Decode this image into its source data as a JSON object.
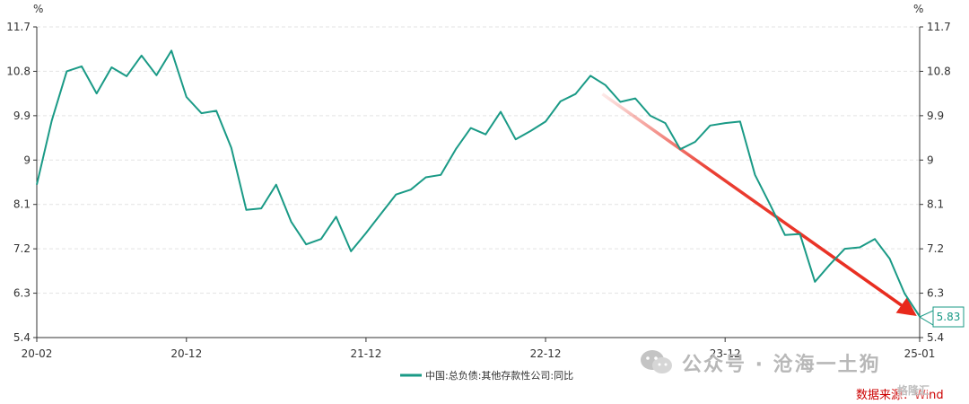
{
  "chart_data": {
    "type": "line",
    "y_unit_left": "%",
    "y_unit_right": "%",
    "ylim": [
      5.4,
      11.7
    ],
    "y_ticks": [
      "5.4",
      "6.3",
      "7.2",
      "8.1",
      "9",
      "9.9",
      "10.8",
      "11.7"
    ],
    "x_tick_labels": [
      {
        "label": "20-02",
        "index": 0
      },
      {
        "label": "20-12",
        "index": 10
      },
      {
        "label": "21-12",
        "index": 22
      },
      {
        "label": "22-12",
        "index": 34
      },
      {
        "label": "23-12",
        "index": 46
      },
      {
        "label": "25-01",
        "index": 59
      }
    ],
    "grid": "horizontal dashed",
    "legend_position": "bottom-center",
    "series": [
      {
        "name": "中国:总负债:其他存款性公司:同比",
        "color": "#1a9a86",
        "values": [
          8.5,
          9.8,
          10.8,
          10.9,
          10.35,
          10.88,
          10.7,
          11.12,
          10.72,
          11.22,
          10.28,
          9.95,
          10.0,
          9.25,
          7.99,
          8.02,
          8.5,
          7.75,
          7.29,
          7.4,
          7.85,
          7.15,
          7.52,
          7.91,
          8.3,
          8.4,
          8.65,
          8.7,
          9.22,
          9.65,
          9.52,
          9.98,
          9.42,
          9.59,
          9.78,
          10.19,
          10.34,
          10.71,
          10.52,
          10.18,
          10.25,
          9.9,
          9.75,
          9.22,
          9.37,
          9.7,
          9.75,
          9.78,
          8.7,
          8.1,
          7.48,
          7.5,
          6.53,
          6.88,
          7.2,
          7.23,
          7.4,
          7.0,
          6.29,
          5.83
        ]
      }
    ],
    "last_value_label": "5.83",
    "trend_arrow_color": "#e8291c"
  },
  "watermark": {
    "text": "公众号 · 沧海一土狗"
  },
  "source_note": "数据来源：Wind",
  "corner_logo": "格隆汇"
}
